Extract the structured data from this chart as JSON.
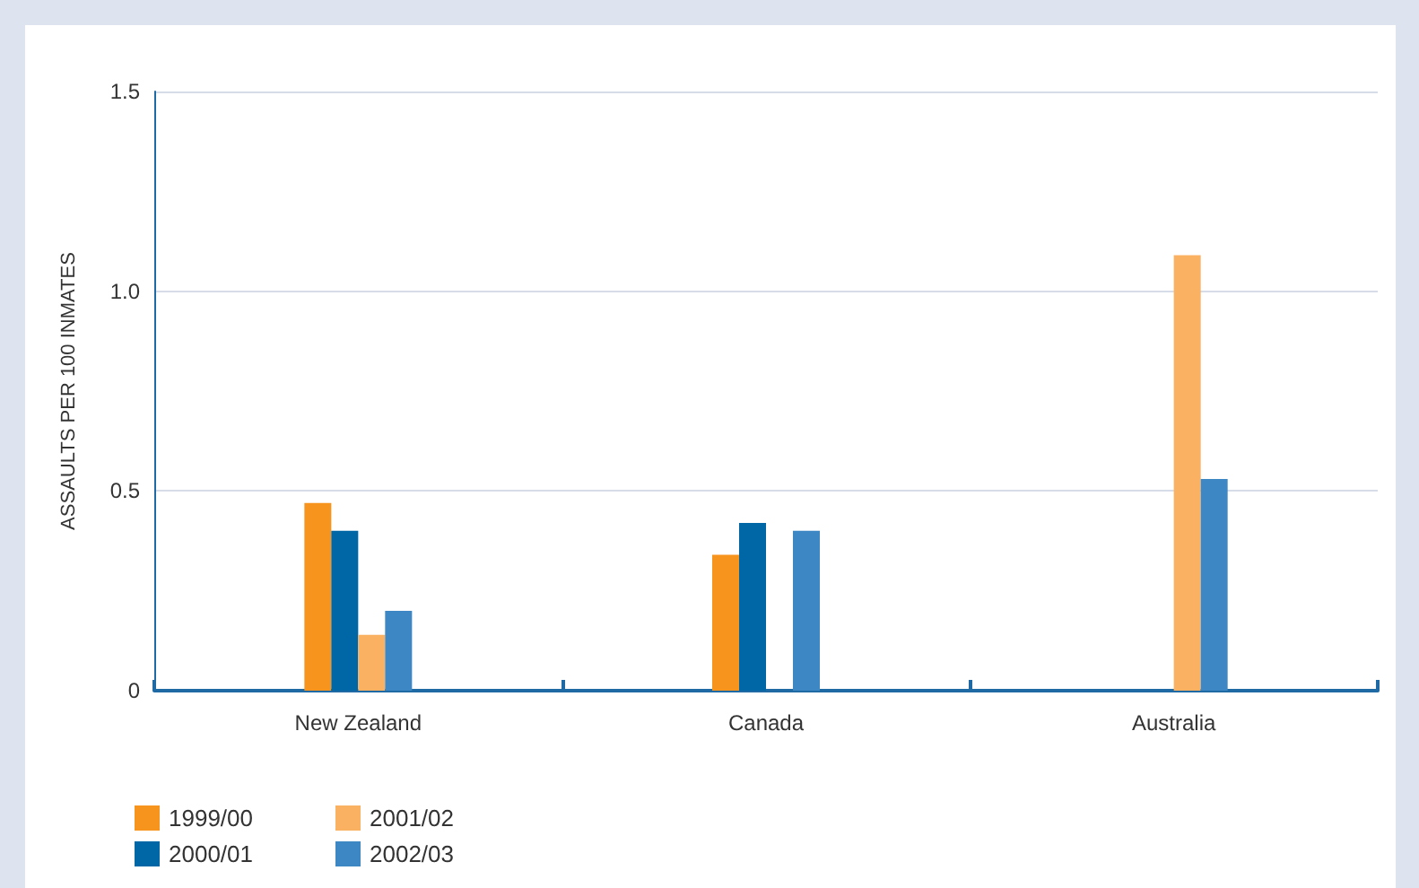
{
  "chart_data": {
    "type": "bar",
    "ylabel": "ASSAULTS PER 100 INMATES",
    "categories": [
      "New Zealand",
      "Canada",
      "Australia"
    ],
    "series": [
      {
        "name": "1999/00",
        "color": "#f7941d",
        "values": [
          0.47,
          0.34,
          null
        ]
      },
      {
        "name": "2000/01",
        "color": "#0067a6",
        "values": [
          0.4,
          0.42,
          null
        ]
      },
      {
        "name": "2001/02",
        "color": "#fbb162",
        "values": [
          0.14,
          null,
          1.09
        ]
      },
      {
        "name": "2002/03",
        "color": "#3d88c4",
        "values": [
          0.2,
          0.4,
          0.53
        ]
      }
    ],
    "ylim": [
      0,
      1.5
    ],
    "yticks": [
      0,
      0.5,
      {
        "value": 1,
        "label": "1.0"
      },
      1.5
    ],
    "grid": "y",
    "legend": "bottom left"
  }
}
